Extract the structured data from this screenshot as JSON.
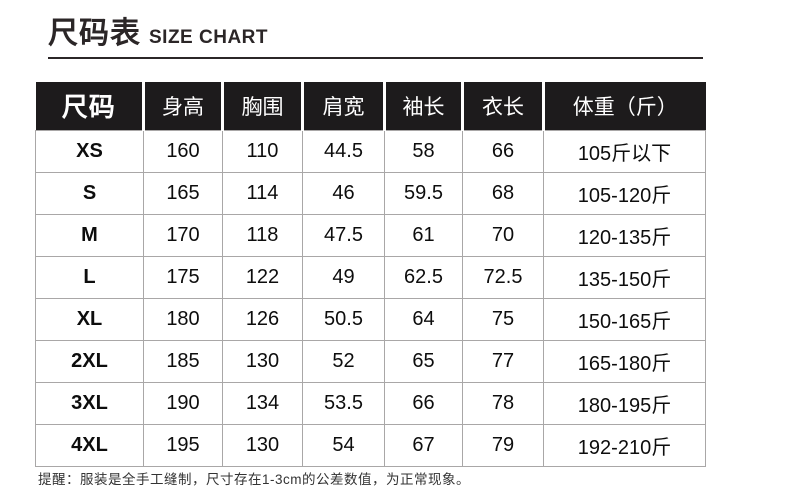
{
  "header": {
    "title_cn": "尺码表",
    "title_en": "SIZE CHART"
  },
  "note": "提醒：服装是全手工缝制，尺寸存在1-3cm的公差数值，为正常现象。",
  "colors": {
    "header_bg": "#1d1b1c",
    "header_text": "#ffffff",
    "grid_line": "#a9a7a7",
    "title_text": "#2b2627",
    "body_text": "#0d0d0d"
  },
  "chart_data": {
    "type": "table",
    "title": "尺码表 SIZE CHART",
    "columns": [
      "尺码",
      "身高",
      "胸围",
      "肩宽",
      "袖长",
      "衣长",
      "体重（斤）"
    ],
    "rows": [
      [
        "XS",
        "160",
        "110",
        "44.5",
        "58",
        "66",
        "105斤以下"
      ],
      [
        "S",
        "165",
        "114",
        "46",
        "59.5",
        "68",
        "105-120斤"
      ],
      [
        "M",
        "170",
        "118",
        "47.5",
        "61",
        "70",
        "120-135斤"
      ],
      [
        "L",
        "175",
        "122",
        "49",
        "62.5",
        "72.5",
        "135-150斤"
      ],
      [
        "XL",
        "180",
        "126",
        "50.5",
        "64",
        "75",
        "150-165斤"
      ],
      [
        "2XL",
        "185",
        "130",
        "52",
        "65",
        "77",
        "165-180斤"
      ],
      [
        "3XL",
        "190",
        "134",
        "53.5",
        "66",
        "78",
        "180-195斤"
      ],
      [
        "4XL",
        "195",
        "130",
        "54",
        "67",
        "79",
        "192-210斤"
      ]
    ],
    "note": "提醒：服装是全手工缝制，尺寸存在1-3cm的公差数值，为正常现象。"
  }
}
